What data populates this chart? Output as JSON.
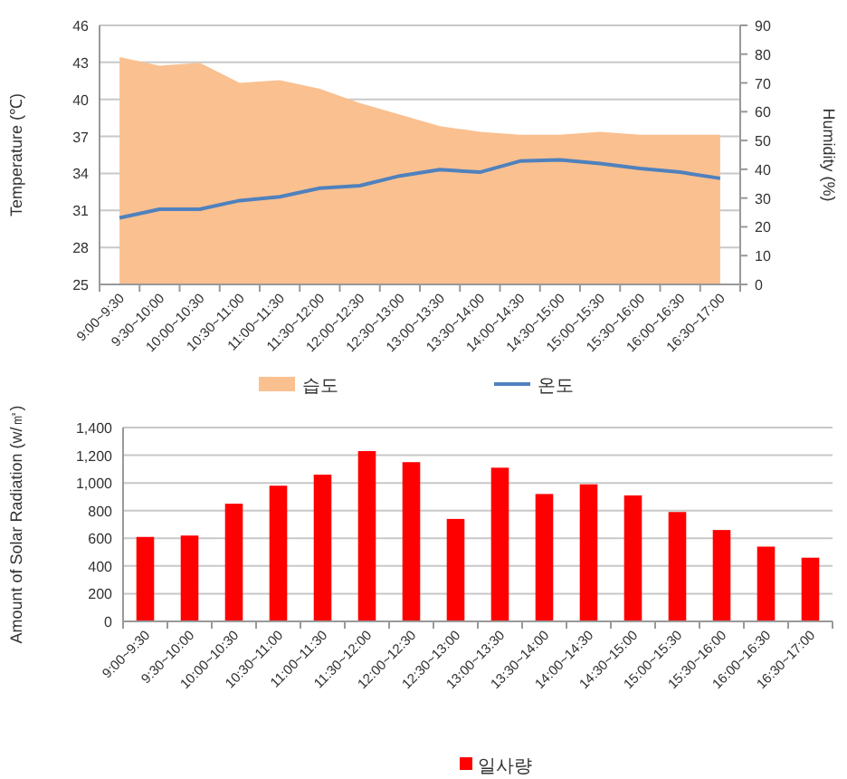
{
  "chart_data": [
    {
      "type": "line",
      "ylabel": "Temperature (℃)",
      "y2label": "Humidity (%)",
      "categories": [
        "9:00~9:30",
        "9:30~10:00",
        "10:00~10:30",
        "10:30~11:00",
        "11:00~11:30",
        "11:30~12:00",
        "12:00~12:30",
        "12:30~13:00",
        "13:00~13:30",
        "13:30~14:00",
        "14:00~14:30",
        "14:30~15:00",
        "15:00~15:30",
        "15:30~16:00",
        "16:00~16:30",
        "16:30~17:00"
      ],
      "series": [
        {
          "name": "습도",
          "type": "area",
          "axis": "y2",
          "color": "#fac090",
          "values": [
            79,
            76,
            77,
            70,
            71,
            68,
            63,
            59,
            55,
            53,
            52,
            52,
            53,
            52,
            52,
            52
          ]
        },
        {
          "name": "온도",
          "color": "#4f81bd",
          "values": [
            30.4,
            31.1,
            31.1,
            31.8,
            32.1,
            32.8,
            33.0,
            33.8,
            34.3,
            34.1,
            35.0,
            35.1,
            34.8,
            34.4,
            34.1,
            33.6
          ]
        }
      ],
      "ylim": [
        25,
        46
      ],
      "yticks": [
        25,
        28,
        31,
        34,
        37,
        40,
        43,
        46
      ],
      "y2lim": [
        0,
        90
      ],
      "y2ticks": [
        0,
        10,
        20,
        30,
        40,
        50,
        60,
        70,
        80,
        90
      ],
      "grid": "y",
      "legend": "bottom",
      "marker": "none"
    },
    {
      "type": "bar",
      "ylabel": "Amount of Solar Radiation (w/㎡)",
      "categories": [
        "9:00~9:30",
        "9:30~10:00",
        "10:00~10:30",
        "10:30~11:00",
        "11:00~11:30",
        "11:30~12:00",
        "12:00~12:30",
        "12:30~13:00",
        "13:00~13:30",
        "13:30~14:00",
        "14:00~14:30",
        "14:30~15:00",
        "15:00~15:30",
        "15:30~16:00",
        "16:00~16:30",
        "16:30~17:00"
      ],
      "series": [
        {
          "name": "일사량",
          "color": "#ff0000",
          "values": [
            610,
            620,
            850,
            980,
            1060,
            1230,
            1150,
            740,
            1110,
            920,
            990,
            910,
            790,
            660,
            540,
            460
          ]
        }
      ],
      "ylim": [
        0,
        1400
      ],
      "yticks": [
        {
          "value": 0,
          "label": "0"
        },
        {
          "value": 200,
          "label": "200"
        },
        {
          "value": 400,
          "label": "400"
        },
        {
          "value": 600,
          "label": "600"
        },
        {
          "value": 800,
          "label": "800"
        },
        {
          "value": 1000,
          "label": "1,000"
        },
        {
          "value": 1200,
          "label": "1,200"
        },
        {
          "value": 1400,
          "label": "1,400"
        }
      ],
      "grid": "y",
      "legend": "bottom"
    }
  ]
}
